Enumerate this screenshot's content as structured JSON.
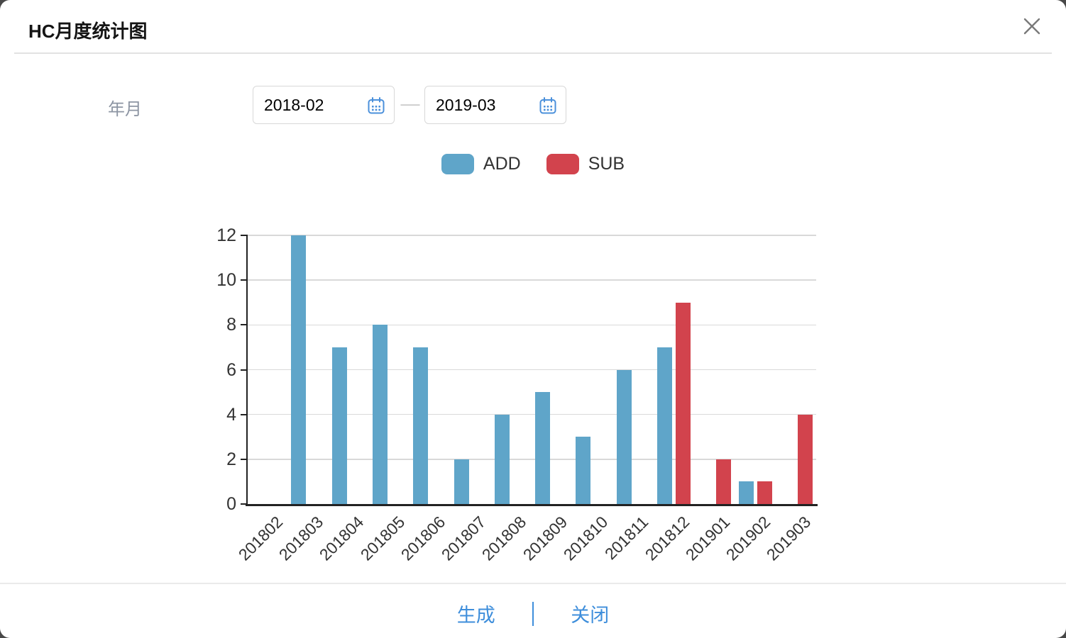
{
  "modal": {
    "title": "HC月度统计图"
  },
  "filter": {
    "label": "年月",
    "start_date": "2018-02",
    "end_date": "2019-03",
    "range_separator": "—"
  },
  "chart_data": {
    "type": "bar",
    "title": "",
    "xlabel": "",
    "ylabel": "",
    "categories": [
      "201802",
      "201803",
      "201804",
      "201805",
      "201806",
      "201807",
      "201808",
      "201809",
      "201810",
      "201811",
      "201812",
      "201901",
      "201902",
      "201903"
    ],
    "series": [
      {
        "name": "ADD",
        "color": "#5fa5c9",
        "values": [
          0,
          12,
          7,
          8,
          7,
          2,
          4,
          5,
          3,
          6,
          7,
          0,
          1,
          0
        ]
      },
      {
        "name": "SUB",
        "color": "#d2434d",
        "values": [
          0,
          0,
          0,
          0,
          0,
          0,
          0,
          0,
          0,
          0,
          9,
          2,
          1,
          4
        ]
      }
    ],
    "ylim": [
      0,
      12
    ],
    "y_ticks": [
      0,
      2,
      4,
      6,
      8,
      10,
      12
    ],
    "grid": true,
    "legend_position": "top",
    "x_label_rotation": -45
  },
  "footer": {
    "generate_label": "生成",
    "close_label": "关闭"
  },
  "colors": {
    "accent_blue": "#3e8edb",
    "bar_add": "#5fa5c9",
    "bar_sub": "#d2434d",
    "backdrop": "#484848",
    "axis": "#222222",
    "gridline": "#d9d9d9"
  }
}
